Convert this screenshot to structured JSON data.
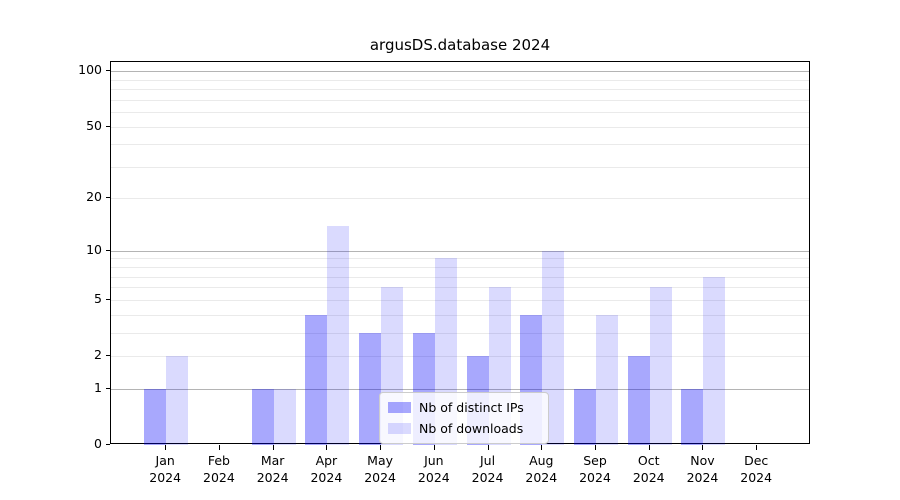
{
  "chart_data": {
    "type": "bar",
    "title": "argusDS.database 2024",
    "categories": [
      "Jan",
      "Feb",
      "Mar",
      "Apr",
      "May",
      "Jun",
      "Jul",
      "Aug",
      "Sep",
      "Oct",
      "Nov",
      "Dec"
    ],
    "x_tick_year": "2024",
    "series": [
      {
        "name": "Nb of distinct IPs",
        "color": "rgba(0,0,250,0.34)",
        "values": [
          1,
          0,
          1,
          4,
          3,
          3,
          2,
          4,
          1,
          2,
          1,
          0
        ]
      },
      {
        "name": "Nb of downloads",
        "color": "rgba(0,0,250,0.145)",
        "values": [
          2,
          0,
          1,
          14,
          6,
          9,
          6,
          10,
          4,
          6,
          7,
          0
        ]
      }
    ],
    "yscale": "log1p",
    "ylim": [
      0,
      112
    ],
    "yticks": [
      0,
      1,
      2,
      5,
      10,
      20,
      50,
      100
    ],
    "major_gridlines": [
      1,
      10,
      100
    ],
    "minor_gridlines": [
      2,
      3,
      4,
      5,
      6,
      7,
      8,
      9,
      20,
      30,
      40,
      50,
      60,
      70,
      80,
      90
    ],
    "grid": true,
    "legend_position": "lower center",
    "colors": {
      "bar_dark": "rgba(0,0,250,0.34)",
      "bar_light": "rgba(0,0,250,0.145)",
      "major_grid": "#b4b4b4",
      "minor_grid": "#eaeaea",
      "spine": "#000000"
    }
  }
}
